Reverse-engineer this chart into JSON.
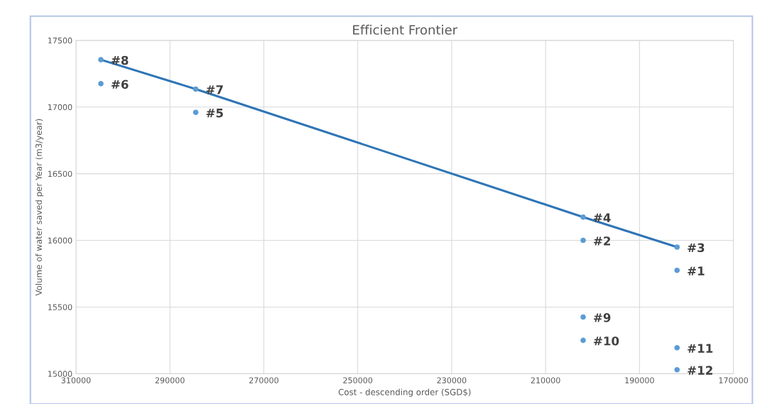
{
  "chart_data": {
    "type": "scatter",
    "title": "Efficient Frontier",
    "xlabel": "Cost - descending order (SGD$)",
    "ylabel": "Volume of water saved per Year (m3/year)",
    "series": [
      {
        "marker": "circle",
        "color": "#5b9bd5",
        "x": [
          182000,
          202000,
          182000,
          202000,
          284500,
          304700,
          284500,
          304700,
          202000,
          202000,
          182000,
          182000
        ],
        "values": [
          15775,
          16000,
          15950,
          16175,
          16960,
          17175,
          17135,
          17355,
          15425,
          15250,
          15195,
          15030
        ]
      },
      {
        "type": "line",
        "color": "#2e75b6",
        "x": [
          304700,
          284500,
          202000,
          182000
        ],
        "values": [
          17355,
          17135,
          16175,
          15950
        ]
      }
    ],
    "annotations": [
      {
        "text": "#1",
        "x": 182000,
        "y": 15775
      },
      {
        "text": "#2",
        "x": 202000,
        "y": 16000
      },
      {
        "text": "#3",
        "x": 182000,
        "y": 15950
      },
      {
        "text": "#4",
        "x": 202000,
        "y": 16175
      },
      {
        "text": "#5",
        "x": 284500,
        "y": 16960
      },
      {
        "text": "#6",
        "x": 304700,
        "y": 17175
      },
      {
        "text": "#7",
        "x": 284500,
        "y": 17135
      },
      {
        "text": "#8",
        "x": 304700,
        "y": 17355
      },
      {
        "text": "#9",
        "x": 202000,
        "y": 15425
      },
      {
        "text": "#10",
        "x": 202000,
        "y": 15250
      },
      {
        "text": "#11",
        "x": 182000,
        "y": 15195
      },
      {
        "text": "#12",
        "x": 182000,
        "y": 15030
      }
    ],
    "xlim": [
      310000,
      170000
    ],
    "xticks": [
      310000,
      290000,
      270000,
      250000,
      230000,
      210000,
      190000,
      170000
    ],
    "ylim": [
      15000,
      17500
    ],
    "yticks": [
      15000,
      15500,
      16000,
      16500,
      17000,
      17500
    ],
    "grid": true
  }
}
